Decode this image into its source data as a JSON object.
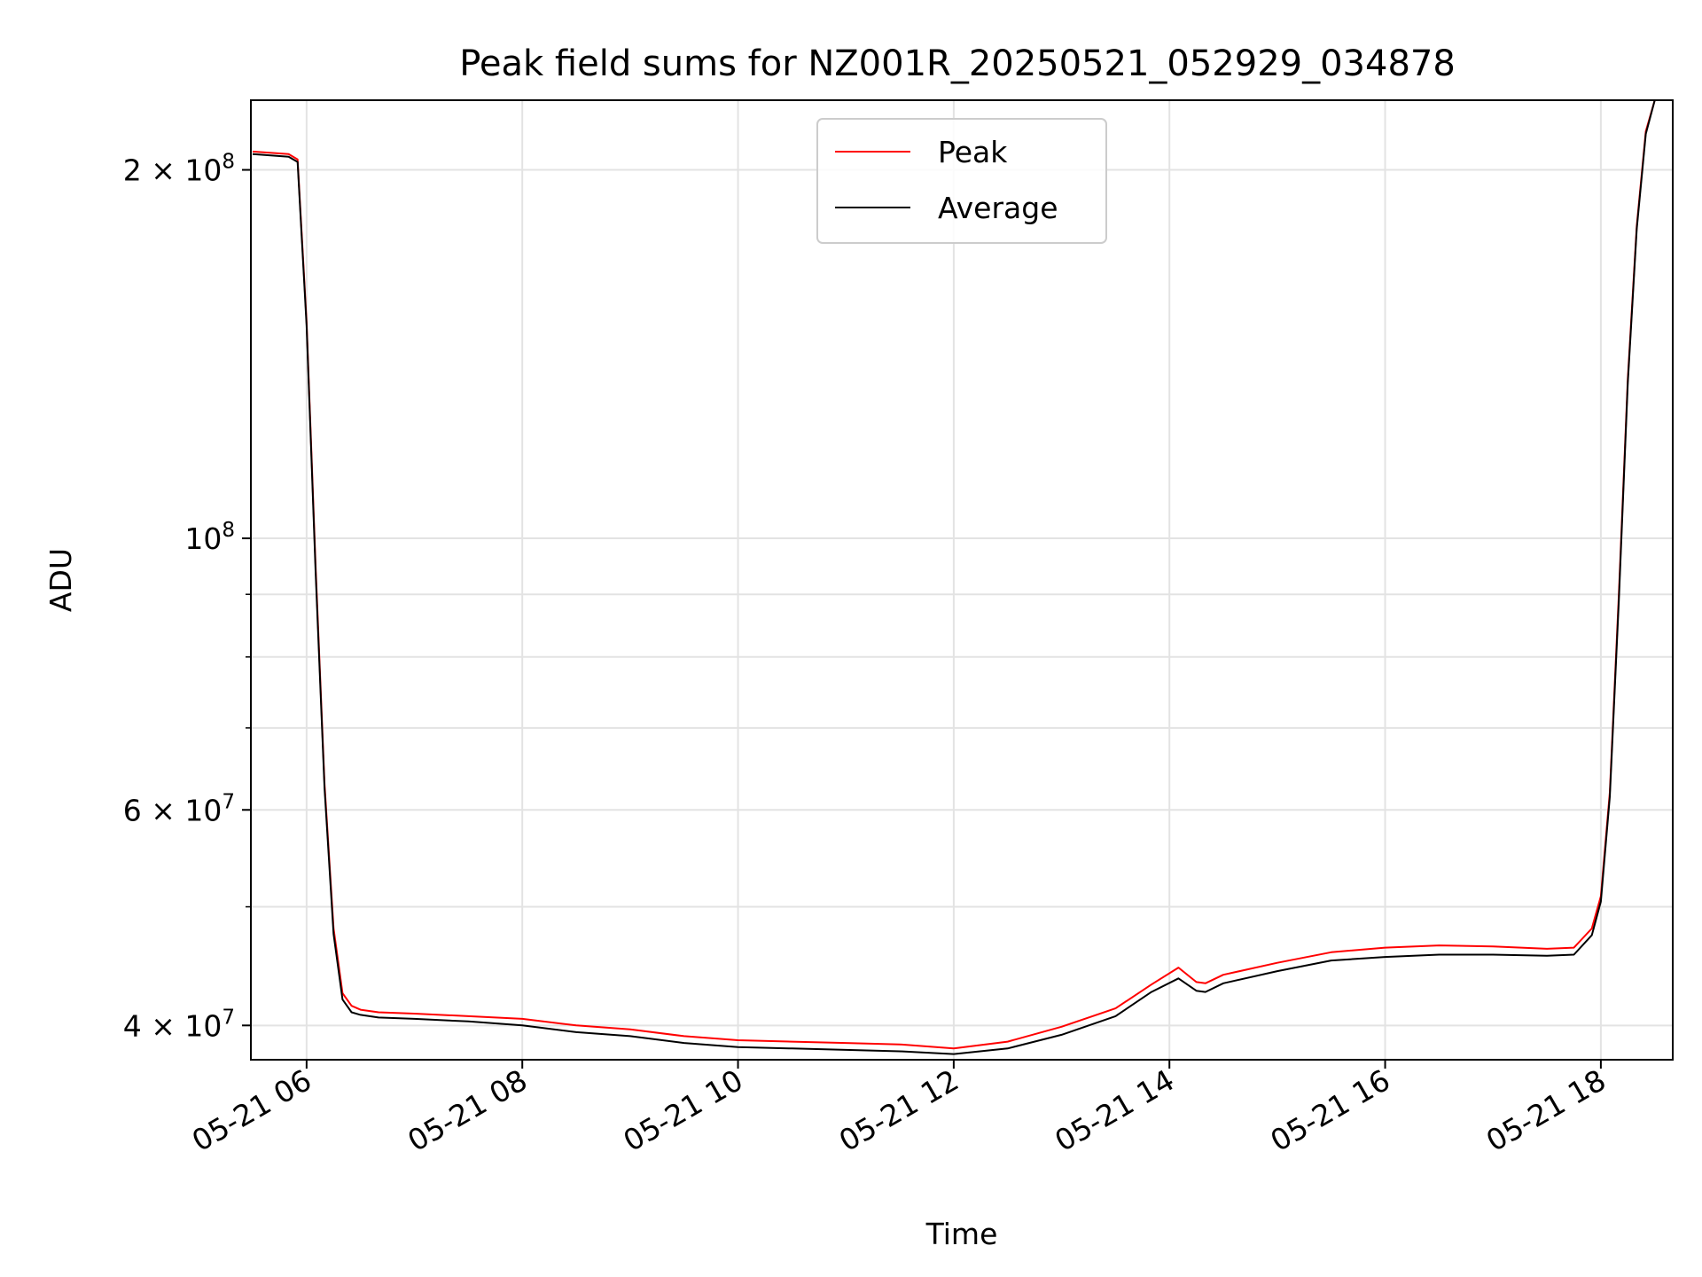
{
  "chart_data": {
    "type": "line",
    "title": "Peak field sums for NZ001R_20250521_052929_034878",
    "xlabel": "Time",
    "ylabel": "ADU",
    "y_scale": "log",
    "ylim": [
      37500000,
      228000000
    ],
    "xlim": [
      "2025-05-21 05:29",
      "2025-05-21 18:40"
    ],
    "x_ticks": [
      "05-21 06",
      "05-21 08",
      "05-21 10",
      "05-21 12",
      "05-21 14",
      "05-21 16",
      "05-21 18"
    ],
    "y_ticks": [
      {
        "value": 40000000,
        "mantissa": "4",
        "exponent": "7"
      },
      {
        "value": 60000000,
        "mantissa": "6",
        "exponent": "7"
      },
      {
        "value": 100000000,
        "mantissa": "",
        "exponent": "8"
      },
      {
        "value": 200000000,
        "mantissa": "2",
        "exponent": "8"
      }
    ],
    "grid": true,
    "legend_position": "top-center",
    "series": [
      {
        "name": "Peak",
        "color": "#ff0000",
        "x": [
          "2025-05-21 05:30",
          "2025-05-21 05:50",
          "2025-05-21 05:55",
          "2025-05-21 06:00",
          "2025-05-21 06:05",
          "2025-05-21 06:10",
          "2025-05-21 06:15",
          "2025-05-21 06:20",
          "2025-05-21 06:25",
          "2025-05-21 06:30",
          "2025-05-21 06:40",
          "2025-05-21 07:00",
          "2025-05-21 07:30",
          "2025-05-21 08:00",
          "2025-05-21 08:30",
          "2025-05-21 09:00",
          "2025-05-21 09:30",
          "2025-05-21 10:00",
          "2025-05-21 10:30",
          "2025-05-21 11:00",
          "2025-05-21 11:30",
          "2025-05-21 12:00",
          "2025-05-21 12:30",
          "2025-05-21 13:00",
          "2025-05-21 13:30",
          "2025-05-21 13:50",
          "2025-05-21 14:05",
          "2025-05-21 14:15",
          "2025-05-21 14:20",
          "2025-05-21 14:30",
          "2025-05-21 15:00",
          "2025-05-21 15:30",
          "2025-05-21 16:00",
          "2025-05-21 16:30",
          "2025-05-21 17:00",
          "2025-05-21 17:30",
          "2025-05-21 17:45",
          "2025-05-21 17:55",
          "2025-05-21 18:00",
          "2025-05-21 18:05",
          "2025-05-21 18:10",
          "2025-05-21 18:15",
          "2025-05-21 18:20",
          "2025-05-21 18:25",
          "2025-05-21 18:30"
        ],
        "y": [
          207000000,
          206000000,
          204000000,
          150000000,
          95000000,
          63000000,
          48000000,
          42500000,
          41500000,
          41200000,
          41000000,
          40900000,
          40700000,
          40500000,
          40000000,
          39700000,
          39200000,
          38900000,
          38800000,
          38700000,
          38600000,
          38300000,
          38800000,
          39900000,
          41300000,
          43200000,
          44600000,
          43400000,
          43300000,
          44000000,
          45000000,
          45900000,
          46300000,
          46500000,
          46400000,
          46200000,
          46300000,
          48000000,
          51000000,
          62000000,
          90000000,
          135000000,
          180000000,
          215000000,
          228000000
        ]
      },
      {
        "name": "Average",
        "color": "#000000",
        "x": [
          "2025-05-21 05:30",
          "2025-05-21 05:50",
          "2025-05-21 05:55",
          "2025-05-21 06:00",
          "2025-05-21 06:05",
          "2025-05-21 06:10",
          "2025-05-21 06:15",
          "2025-05-21 06:20",
          "2025-05-21 06:25",
          "2025-05-21 06:30",
          "2025-05-21 06:40",
          "2025-05-21 07:00",
          "2025-05-21 07:30",
          "2025-05-21 08:00",
          "2025-05-21 08:30",
          "2025-05-21 09:00",
          "2025-05-21 09:30",
          "2025-05-21 10:00",
          "2025-05-21 10:30",
          "2025-05-21 11:00",
          "2025-05-21 11:30",
          "2025-05-21 12:00",
          "2025-05-21 12:30",
          "2025-05-21 13:00",
          "2025-05-21 13:30",
          "2025-05-21 13:50",
          "2025-05-21 14:05",
          "2025-05-21 14:15",
          "2025-05-21 14:20",
          "2025-05-21 14:30",
          "2025-05-21 15:00",
          "2025-05-21 15:30",
          "2025-05-21 16:00",
          "2025-05-21 16:30",
          "2025-05-21 17:00",
          "2025-05-21 17:30",
          "2025-05-21 17:45",
          "2025-05-21 17:55",
          "2025-05-21 18:00",
          "2025-05-21 18:05",
          "2025-05-21 18:10",
          "2025-05-21 18:15",
          "2025-05-21 18:20",
          "2025-05-21 18:25",
          "2025-05-21 18:30"
        ],
        "y": [
          206000000,
          205000000,
          203000000,
          149000000,
          94000000,
          62500000,
          47500000,
          42000000,
          41000000,
          40800000,
          40600000,
          40500000,
          40300000,
          40000000,
          39500000,
          39200000,
          38700000,
          38400000,
          38300000,
          38200000,
          38100000,
          37900000,
          38300000,
          39300000,
          40700000,
          42600000,
          43700000,
          42700000,
          42600000,
          43300000,
          44300000,
          45200000,
          45500000,
          45700000,
          45700000,
          45600000,
          45700000,
          47400000,
          50500000,
          61500000,
          89000000,
          134000000,
          179000000,
          214000000,
          228000000
        ]
      }
    ]
  }
}
